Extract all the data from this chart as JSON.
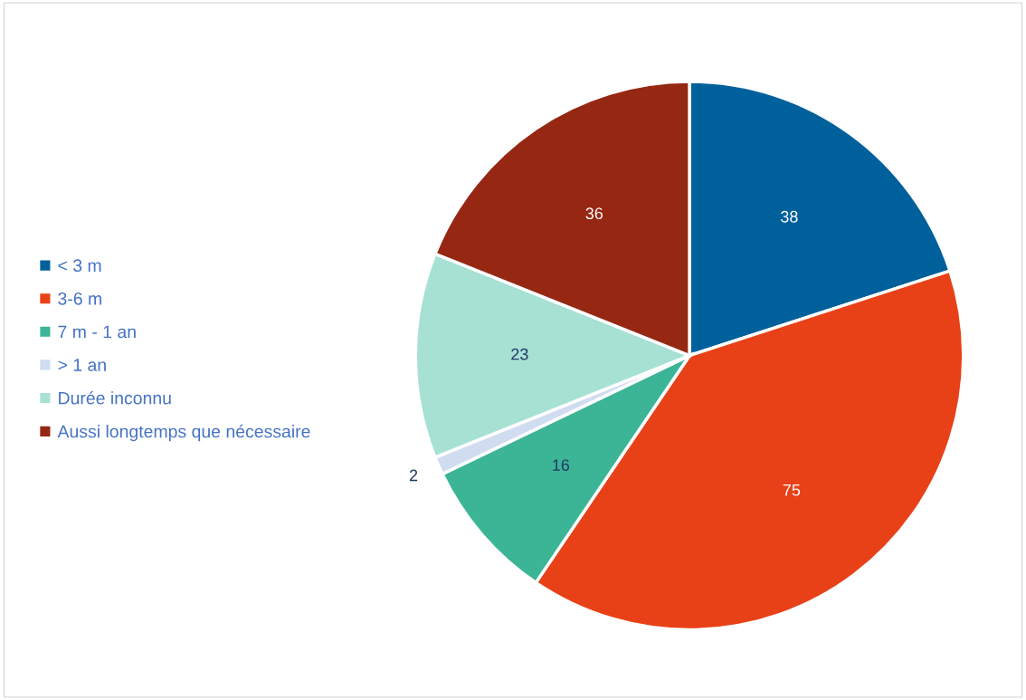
{
  "chart_data": {
    "type": "pie",
    "categories": [
      "< 3 m",
      "3-6 m",
      "7 m - 1 an",
      "> 1 an",
      "Durée inconnu",
      "Aussi longtemps que nécessaire"
    ],
    "values": [
      38,
      75,
      16,
      2,
      23,
      36
    ],
    "colors": [
      "#00609c",
      "#e84118",
      "#3cb597",
      "#d0dcf0",
      "#a6e1d4",
      "#952713"
    ],
    "data_labels": true,
    "legend": "left"
  }
}
